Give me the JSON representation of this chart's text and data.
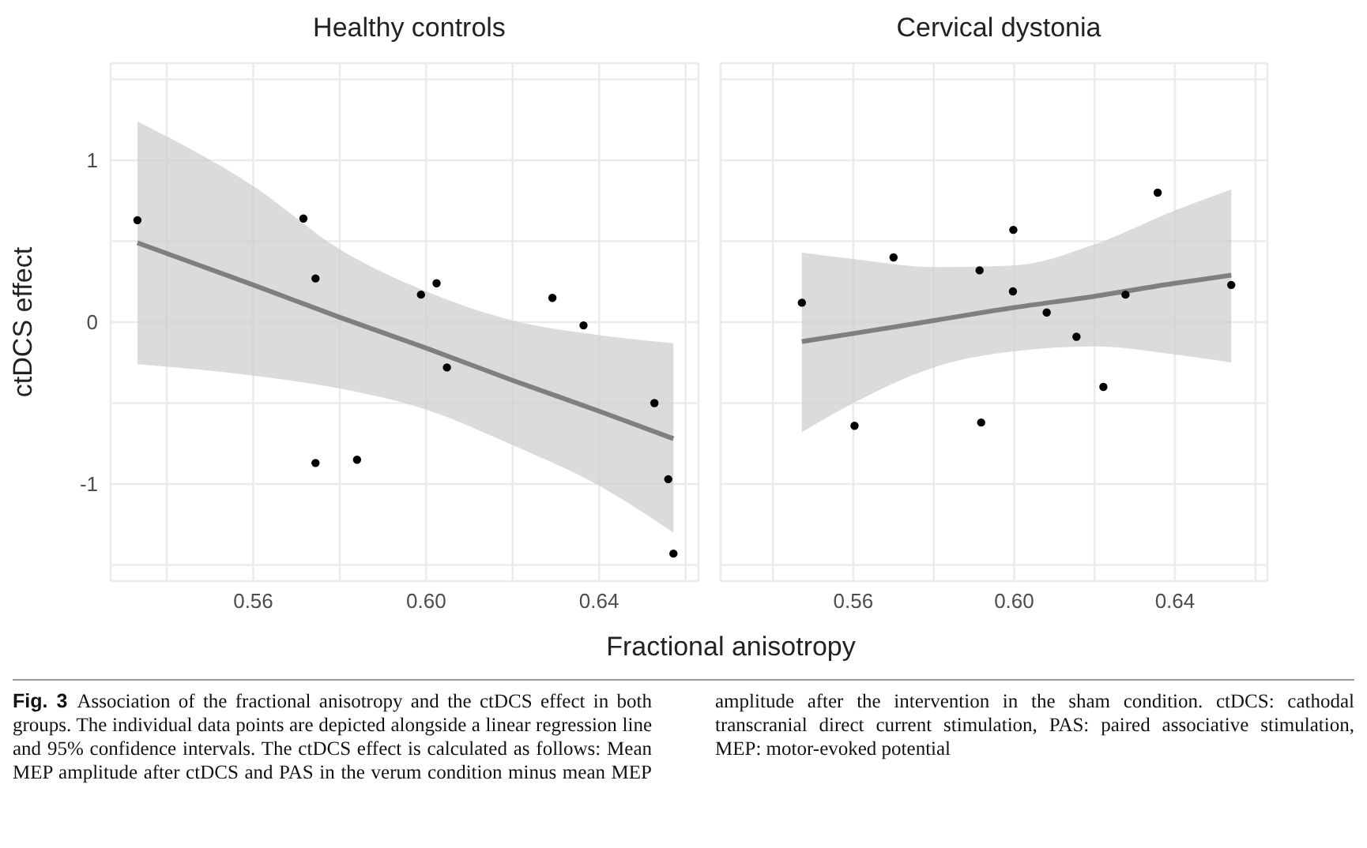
{
  "chart_data": [
    {
      "type": "scatter",
      "title": "Healthy controls",
      "xlabel": "Fractional anisotropy",
      "ylabel": "ctDCS effect",
      "xlim": [
        0.527,
        0.663
      ],
      "ylim": [
        -1.6,
        1.6
      ],
      "xticks": [
        {
          "value": 0.54,
          "label": null
        },
        {
          "value": 0.56,
          "label": "0.56"
        },
        {
          "value": 0.58,
          "label": null
        },
        {
          "value": 0.6,
          "label": "0.60"
        },
        {
          "value": 0.62,
          "label": null
        },
        {
          "value": 0.64,
          "label": "0.64"
        },
        {
          "value": 0.66,
          "label": null
        }
      ],
      "yticks": [
        {
          "value": -1.5,
          "label": null
        },
        -1,
        {
          "value": -0.5,
          "label": null
        },
        0,
        {
          "value": 0.5,
          "label": null
        },
        1,
        {
          "value": 1.5,
          "label": null
        }
      ],
      "grid": true,
      "annotations": [
        "Fig. 3",
        "Association of the fractional anisotropy and the ctDCS effect in both groups. The individual data points are depicted alongside a linear regression line and 95% confidence intervals. The ctDCS effect is calculated as follows: Mean MEP amplitude after ctDCS and PAS in the verum condition minus mean MEP amplitude after the intervention in the sham condition. ctDCS: cathodal transcranial direct current stimulation, PAS: paired associative stimulation, MEP: motor-evoked potential"
      ],
      "series": [
        {
          "marker": "circle",
          "color": "#000000",
          "x": [
            0.5332,
            0.5716,
            0.5744,
            0.5744,
            0.584,
            0.5988,
            0.6024,
            0.6048,
            0.6292,
            0.6364,
            0.6528,
            0.656,
            0.6572
          ],
          "values": [
            0.63,
            0.64,
            0.27,
            -0.87,
            -0.85,
            0.17,
            0.24,
            -0.28,
            0.15,
            -0.02,
            -0.5,
            -0.97,
            -1.43
          ]
        },
        {
          "type": "line",
          "marker": "none",
          "color": "#7f7f7f",
          "x": [
            0.5332,
            0.56,
            0.58,
            0.6,
            0.62,
            0.64,
            0.6572
          ],
          "values": [
            0.49,
            0.23,
            0.03,
            -0.16,
            -0.36,
            -0.55,
            -0.72
          ],
          "lower": [
            -0.26,
            -0.33,
            -0.41,
            -0.54,
            -0.76,
            -1.01,
            -1.3
          ],
          "upper": [
            1.24,
            0.84,
            0.45,
            0.19,
            0.01,
            -0.08,
            -0.13
          ]
        }
      ]
    },
    {
      "type": "scatter",
      "title": "Cervical dystonia",
      "xlim": [
        0.527,
        0.663
      ],
      "ylim": [
        -1.6,
        1.6
      ],
      "tick_labels": "x",
      "xticks": [
        {
          "value": 0.54,
          "label": null
        },
        {
          "value": 0.56,
          "label": "0.56"
        },
        {
          "value": 0.58,
          "label": null
        },
        {
          "value": 0.6,
          "label": "0.60"
        },
        {
          "value": 0.62,
          "label": null
        },
        {
          "value": 0.64,
          "label": "0.64"
        },
        {
          "value": 0.66,
          "label": null
        }
      ],
      "yticks": [
        {
          "value": -1.5,
          "label": null
        },
        -1,
        {
          "value": -0.5,
          "label": null
        },
        0,
        {
          "value": 0.5,
          "label": null
        },
        1,
        {
          "value": 1.5,
          "label": null
        }
      ],
      "grid": true,
      "series": [
        {
          "marker": "circle",
          "color": "#000000",
          "x": [
            0.5472,
            0.5603,
            0.57,
            0.5914,
            0.5918,
            0.5998,
            0.5997,
            0.6081,
            0.6155,
            0.6222,
            0.6277,
            0.6357,
            0.654
          ],
          "values": [
            0.12,
            -0.64,
            0.4,
            0.32,
            -0.62,
            0.57,
            0.19,
            0.06,
            -0.09,
            -0.4,
            0.17,
            0.8,
            0.23
          ]
        },
        {
          "type": "line",
          "marker": "none",
          "color": "#7f7f7f",
          "x": [
            0.5472,
            0.56,
            0.58,
            0.6,
            0.62,
            0.64,
            0.654
          ],
          "values": [
            -0.12,
            -0.07,
            0.01,
            0.09,
            0.16,
            0.24,
            0.29
          ],
          "lower": [
            -0.68,
            -0.5,
            -0.28,
            -0.18,
            -0.15,
            -0.2,
            -0.25
          ],
          "upper": [
            0.43,
            0.39,
            0.34,
            0.35,
            0.48,
            0.69,
            0.82
          ]
        }
      ]
    }
  ]
}
